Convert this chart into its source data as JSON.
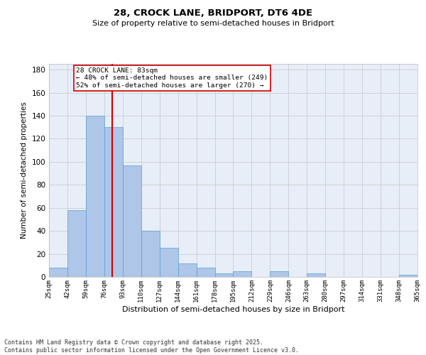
{
  "title_line1": "28, CROCK LANE, BRIDPORT, DT6 4DE",
  "title_line2": "Size of property relative to semi-detached houses in Bridport",
  "xlabel": "Distribution of semi-detached houses by size in Bridport",
  "ylabel": "Number of semi-detached properties",
  "property_size": 83,
  "annotation_text": "28 CROCK LANE: 83sqm\n← 48% of semi-detached houses are smaller (249)\n52% of semi-detached houses are larger (270) →",
  "bin_edges": [
    25,
    42,
    59,
    76,
    93,
    110,
    127,
    144,
    161,
    178,
    195,
    212,
    229,
    246,
    263,
    280,
    297,
    314,
    331,
    348,
    365
  ],
  "bin_labels": [
    "25sqm",
    "42sqm",
    "59sqm",
    "76sqm",
    "93sqm",
    "110sqm",
    "127sqm",
    "144sqm",
    "161sqm",
    "178sqm",
    "195sqm",
    "212sqm",
    "229sqm",
    "246sqm",
    "263sqm",
    "280sqm",
    "297sqm",
    "314sqm",
    "331sqm",
    "348sqm",
    "365sqm"
  ],
  "counts": [
    8,
    58,
    140,
    130,
    97,
    40,
    25,
    12,
    8,
    3,
    5,
    0,
    5,
    0,
    3,
    0,
    0,
    0,
    0,
    2
  ],
  "bar_color": "#aec6e8",
  "bar_edge_color": "#5a9fd4",
  "vline_color": "#cc0000",
  "grid_color": "#cccccc",
  "background_color": "#e8eef8",
  "footer_text": "Contains HM Land Registry data © Crown copyright and database right 2025.\nContains public sector information licensed under the Open Government Licence v3.0.",
  "ylim": [
    0,
    185
  ],
  "yticks": [
    0,
    20,
    40,
    60,
    80,
    100,
    120,
    140,
    160,
    180
  ]
}
